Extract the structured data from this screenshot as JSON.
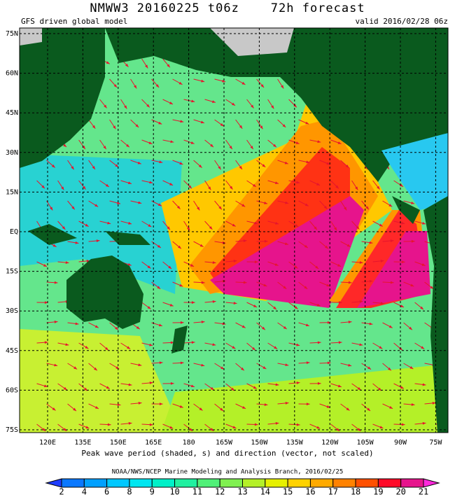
{
  "header": {
    "title": "NMWW3 20160225 t06z    72h forecast",
    "subtitle": "GFS driven global model",
    "valid": "valid 2016/02/28 06z"
  },
  "map": {
    "lat_labels": [
      "75N",
      "60N",
      "45N",
      "30N",
      "15N",
      "EQ",
      "15S",
      "30S",
      "45S",
      "60S",
      "75S"
    ],
    "lon_labels": [
      "120E",
      "135E",
      "150E",
      "165E",
      "180",
      "165W",
      "150W",
      "135W",
      "120W",
      "105W",
      "90W",
      "75W"
    ],
    "caption": "Peak wave period (shaded, s) and direction (vector, not scaled)"
  },
  "footer": {
    "credit": "NOAA/NWS/NCEP Marine Modeling and Analysis Branch, 2016/02/25"
  },
  "colorbar": {
    "labels": [
      2,
      4,
      6,
      8,
      9,
      10,
      11,
      12,
      13,
      14,
      15,
      16,
      17,
      18,
      19,
      20,
      21
    ],
    "colors": [
      "#1e3cff",
      "#0a78ff",
      "#00a0ff",
      "#00c8ff",
      "#00e6f0",
      "#00f0c8",
      "#20f0a0",
      "#50f078",
      "#80f050",
      "#b4f028",
      "#e6f000",
      "#ffd200",
      "#ffaa00",
      "#ff8200",
      "#ff5000",
      "#ff0a28",
      "#e6148c",
      "#ff28dc"
    ]
  }
}
